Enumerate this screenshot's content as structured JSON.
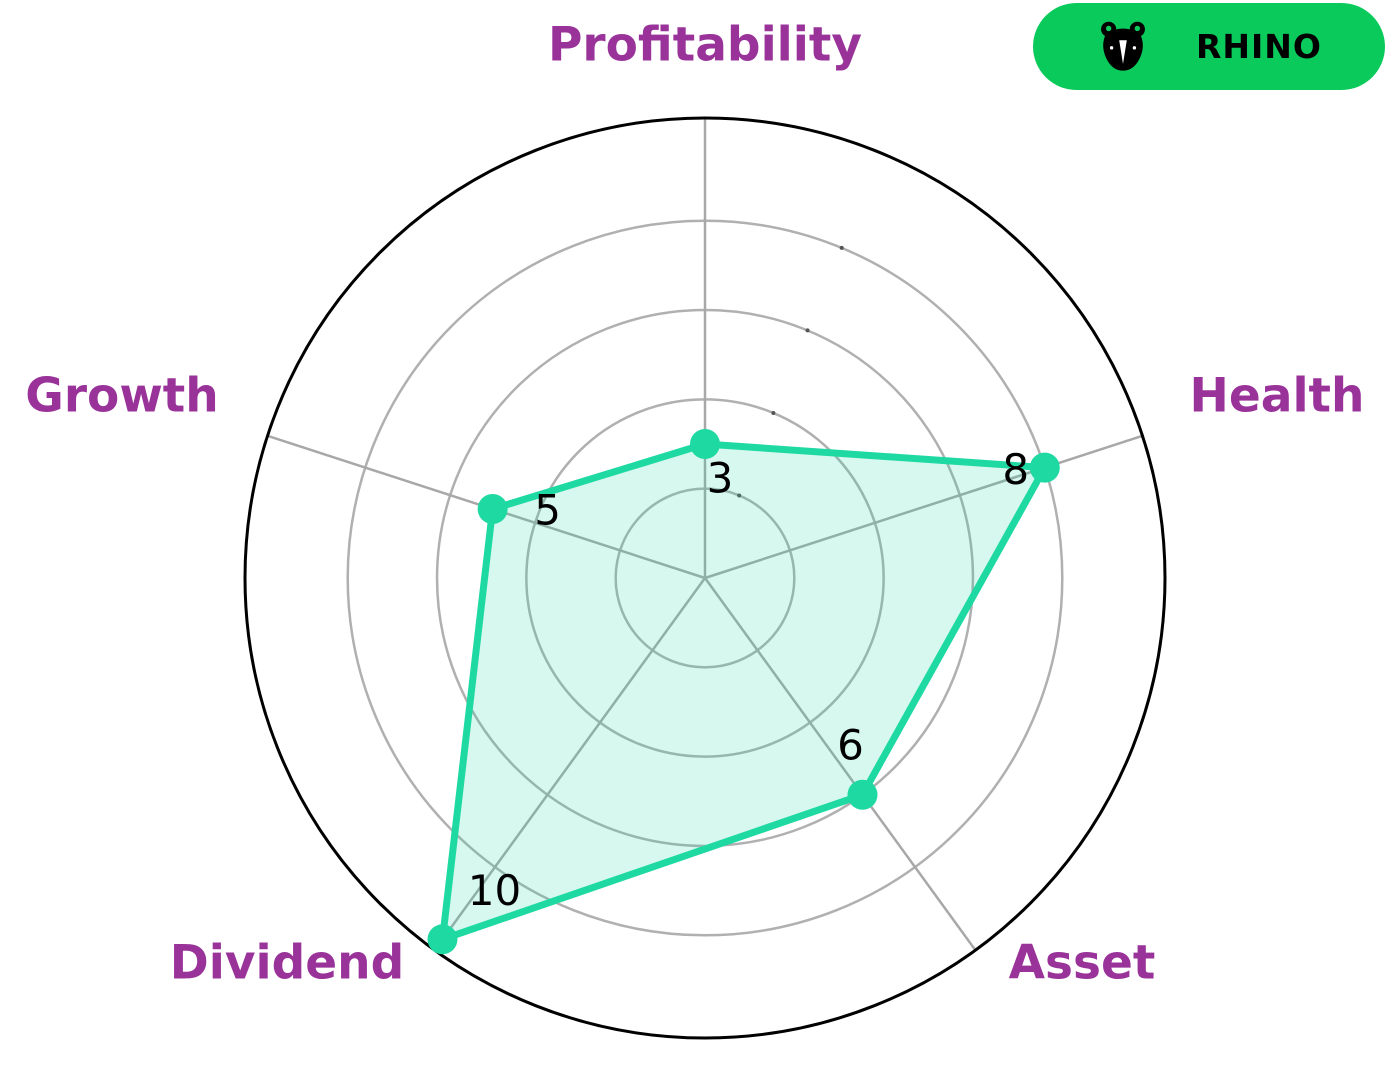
{
  "legend": {
    "label": "RHINO",
    "icon": "rhino-icon",
    "bg_color": "#0aca5c",
    "text_color": "#000000"
  },
  "chart_data": {
    "type": "radar",
    "categories": [
      "Profitability",
      "Health",
      "Asset",
      "Dividend",
      "Growth"
    ],
    "series": [
      {
        "name": "RHINO",
        "values": [
          3,
          8,
          6,
          10,
          5
        ]
      }
    ],
    "rmin": 0,
    "rmax": 10.3,
    "gridline_values": [
      2,
      4,
      6,
      8
    ],
    "grid": true,
    "legend_position": "top-right",
    "axis_label_color": "#993399",
    "value_label_color": "#000000",
    "line_color": "#1fd9a3",
    "fill_color": "rgba(31, 217, 163, 0.18)",
    "marker_color": "#1fd9a3",
    "grid_color": "#b0b0b0",
    "spoke_color": "#a8a8a8",
    "outline_color": "#000000",
    "rtick_color": "#555555"
  }
}
